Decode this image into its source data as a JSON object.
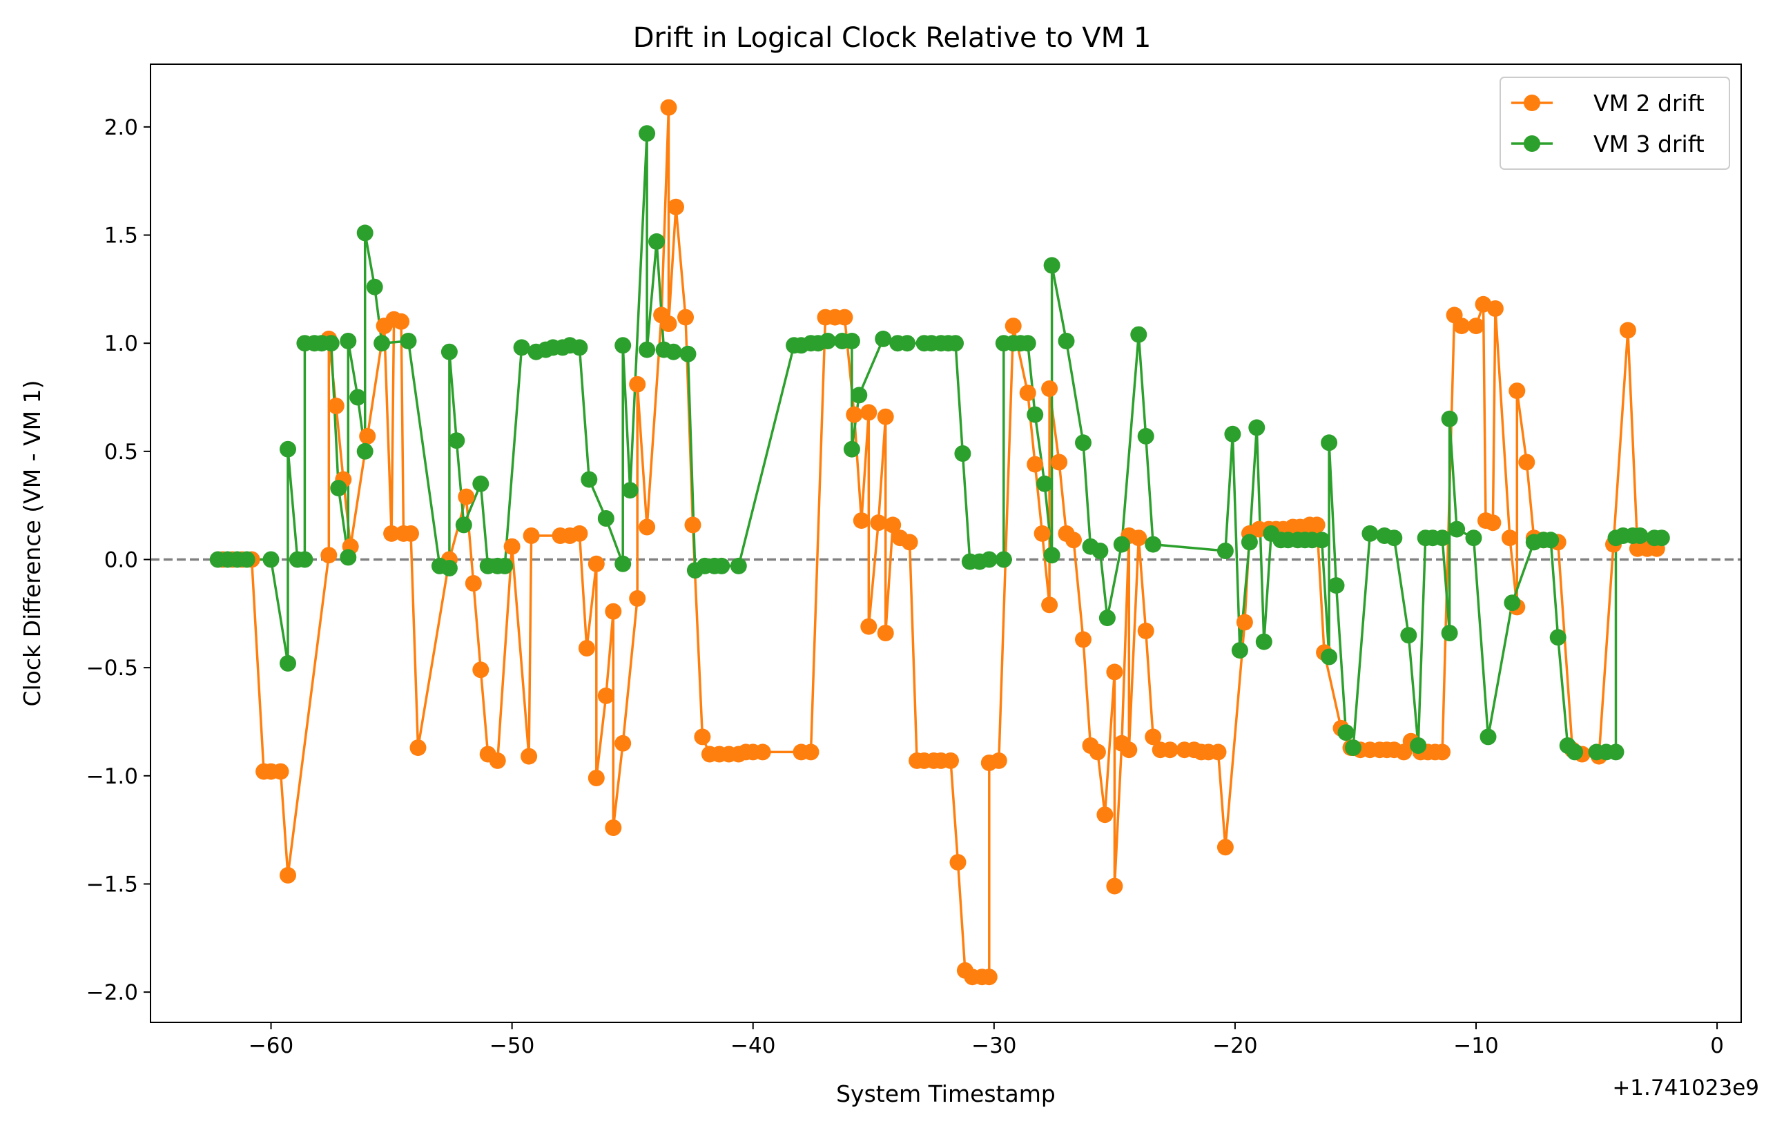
{
  "chart_data": {
    "type": "line",
    "title": "Drift in Logical Clock Relative to VM 1",
    "xlabel": "System Timestamp",
    "ylabel": "Clock Difference (VM - VM 1)",
    "x_offset_label": "+1.741023e9",
    "xlim": [
      -65,
      1
    ],
    "ylim": [
      -2.14,
      2.29
    ],
    "x_ticks": [
      -60,
      -50,
      -40,
      -30,
      -20,
      -10,
      0
    ],
    "x_tick_labels": [
      "−60",
      "−50",
      "−40",
      "−30",
      "−20",
      "−10",
      "0"
    ],
    "y_ticks": [
      2.0,
      1.5,
      1.0,
      0.5,
      0.0,
      -0.5,
      -1.0,
      -1.5,
      -2.0
    ],
    "y_tick_labels": [
      "2.0",
      "1.5",
      "1.0",
      "0.5",
      "0.0",
      "−0.5",
      "−1.0",
      "−1.5",
      "−2.0"
    ],
    "grid": false,
    "legend_position": "top-right",
    "reference_line": {
      "y": 0,
      "style": "dashed",
      "color": "#808080"
    },
    "series": [
      {
        "name": "VM 2 drift",
        "color": "#ff7f0e",
        "points": [
          [
            -62.0,
            0.0
          ],
          [
            -61.6,
            0.0
          ],
          [
            -61.2,
            0.0
          ],
          [
            -60.8,
            0.0
          ],
          [
            -60.3,
            -0.98
          ],
          [
            -60.0,
            -0.98
          ],
          [
            -59.6,
            -0.98
          ],
          [
            -59.3,
            -1.46
          ],
          [
            -57.6,
            0.02
          ],
          [
            -57.6,
            1.02
          ],
          [
            -57.3,
            0.71
          ],
          [
            -57.0,
            0.37
          ],
          [
            -56.7,
            0.06
          ],
          [
            -56.0,
            0.57
          ],
          [
            -55.3,
            1.08
          ],
          [
            -55.0,
            0.12
          ],
          [
            -54.9,
            1.11
          ],
          [
            -54.6,
            1.1
          ],
          [
            -54.5,
            0.12
          ],
          [
            -54.2,
            0.12
          ],
          [
            -53.9,
            -0.87
          ],
          [
            -52.6,
            0.0
          ],
          [
            -51.9,
            0.29
          ],
          [
            -51.6,
            -0.11
          ],
          [
            -51.3,
            -0.51
          ],
          [
            -51.0,
            -0.9
          ],
          [
            -50.6,
            -0.93
          ],
          [
            -50.0,
            0.06
          ],
          [
            -49.3,
            -0.91
          ],
          [
            -49.2,
            0.11
          ],
          [
            -48.0,
            0.11
          ],
          [
            -47.6,
            0.11
          ],
          [
            -47.2,
            0.12
          ],
          [
            -46.9,
            -0.41
          ],
          [
            -46.5,
            -0.02
          ],
          [
            -46.5,
            -1.01
          ],
          [
            -46.1,
            -0.63
          ],
          [
            -45.8,
            -0.24
          ],
          [
            -45.8,
            -1.24
          ],
          [
            -45.4,
            -0.85
          ],
          [
            -44.8,
            -0.18
          ],
          [
            -44.8,
            0.81
          ],
          [
            -44.4,
            0.15
          ],
          [
            -43.8,
            1.13
          ],
          [
            -43.5,
            2.09
          ],
          [
            -43.5,
            1.09
          ],
          [
            -43.2,
            1.63
          ],
          [
            -42.8,
            1.12
          ],
          [
            -42.5,
            0.16
          ],
          [
            -42.1,
            -0.82
          ],
          [
            -41.8,
            -0.9
          ],
          [
            -41.4,
            -0.9
          ],
          [
            -41.0,
            -0.9
          ],
          [
            -40.6,
            -0.9
          ],
          [
            -40.3,
            -0.89
          ],
          [
            -40.0,
            -0.89
          ],
          [
            -39.6,
            -0.89
          ],
          [
            -38.0,
            -0.89
          ],
          [
            -37.6,
            -0.89
          ],
          [
            -37.0,
            1.12
          ],
          [
            -36.6,
            1.12
          ],
          [
            -36.2,
            1.12
          ],
          [
            -35.8,
            0.67
          ],
          [
            -35.5,
            0.18
          ],
          [
            -35.2,
            0.68
          ],
          [
            -35.2,
            -0.31
          ],
          [
            -34.8,
            0.17
          ],
          [
            -34.5,
            0.66
          ],
          [
            -34.5,
            -0.34
          ],
          [
            -34.2,
            0.16
          ],
          [
            -33.9,
            0.1
          ],
          [
            -33.5,
            0.08
          ],
          [
            -33.2,
            -0.93
          ],
          [
            -32.9,
            -0.93
          ],
          [
            -32.5,
            -0.93
          ],
          [
            -32.2,
            -0.93
          ],
          [
            -31.8,
            -0.93
          ],
          [
            -31.5,
            -1.4
          ],
          [
            -31.2,
            -1.9
          ],
          [
            -30.9,
            -1.93
          ],
          [
            -30.5,
            -1.93
          ],
          [
            -30.2,
            -1.93
          ],
          [
            -30.2,
            -0.94
          ],
          [
            -29.8,
            -0.93
          ],
          [
            -29.2,
            1.08
          ],
          [
            -28.6,
            0.77
          ],
          [
            -28.3,
            0.44
          ],
          [
            -28.0,
            0.12
          ],
          [
            -27.7,
            -0.21
          ],
          [
            -27.7,
            0.79
          ],
          [
            -27.3,
            0.45
          ],
          [
            -27.0,
            0.12
          ],
          [
            -26.7,
            0.09
          ],
          [
            -26.3,
            -0.37
          ],
          [
            -26.0,
            -0.86
          ],
          [
            -25.7,
            -0.89
          ],
          [
            -25.4,
            -1.18
          ],
          [
            -25.0,
            -0.52
          ],
          [
            -25.0,
            -1.51
          ],
          [
            -24.7,
            -0.85
          ],
          [
            -24.4,
            0.11
          ],
          [
            -24.4,
            -0.88
          ],
          [
            -24.0,
            0.1
          ],
          [
            -23.7,
            -0.33
          ],
          [
            -23.4,
            -0.82
          ],
          [
            -23.1,
            -0.88
          ],
          [
            -22.7,
            -0.88
          ],
          [
            -22.1,
            -0.88
          ],
          [
            -21.7,
            -0.88
          ],
          [
            -21.4,
            -0.89
          ],
          [
            -21.1,
            -0.89
          ],
          [
            -20.7,
            -0.89
          ],
          [
            -20.4,
            -1.33
          ],
          [
            -19.6,
            -0.29
          ],
          [
            -19.4,
            0.12
          ],
          [
            -19.0,
            0.14
          ],
          [
            -18.6,
            0.14
          ],
          [
            -18.3,
            0.14
          ],
          [
            -18.0,
            0.14
          ],
          [
            -17.6,
            0.15
          ],
          [
            -17.3,
            0.15
          ],
          [
            -16.9,
            0.16
          ],
          [
            -16.6,
            0.16
          ],
          [
            -16.3,
            -0.43
          ],
          [
            -15.6,
            -0.78
          ],
          [
            -15.2,
            -0.87
          ],
          [
            -14.8,
            -0.88
          ],
          [
            -14.4,
            -0.88
          ],
          [
            -14.0,
            -0.88
          ],
          [
            -13.7,
            -0.88
          ],
          [
            -13.4,
            -0.88
          ],
          [
            -13.0,
            -0.89
          ],
          [
            -12.7,
            -0.84
          ],
          [
            -12.3,
            -0.89
          ],
          [
            -12.0,
            -0.89
          ],
          [
            -11.7,
            -0.89
          ],
          [
            -11.4,
            -0.89
          ],
          [
            -10.9,
            1.13
          ],
          [
            -10.6,
            1.08
          ],
          [
            -10.0,
            1.08
          ],
          [
            -9.7,
            1.18
          ],
          [
            -9.6,
            0.18
          ],
          [
            -9.3,
            0.17
          ],
          [
            -9.2,
            1.16
          ],
          [
            -8.6,
            0.1
          ],
          [
            -8.3,
            -0.22
          ],
          [
            -8.3,
            0.78
          ],
          [
            -7.9,
            0.45
          ],
          [
            -7.6,
            0.1
          ],
          [
            -7.2,
            0.09
          ],
          [
            -6.6,
            0.08
          ],
          [
            -6.0,
            -0.88
          ],
          [
            -5.6,
            -0.9
          ],
          [
            -4.9,
            -0.91
          ],
          [
            -4.3,
            0.07
          ],
          [
            -3.7,
            1.06
          ],
          [
            -3.3,
            0.05
          ],
          [
            -2.9,
            0.05
          ],
          [
            -2.5,
            0.05
          ]
        ]
      },
      {
        "name": "VM 3 drift",
        "color": "#2ca02c",
        "points": [
          [
            -62.2,
            0.0
          ],
          [
            -61.8,
            0.0
          ],
          [
            -61.4,
            0.0
          ],
          [
            -61.0,
            0.0
          ],
          [
            -60.0,
            0.0
          ],
          [
            -59.3,
            -0.48
          ],
          [
            -59.3,
            0.51
          ],
          [
            -58.9,
            0.0
          ],
          [
            -58.6,
            0.0
          ],
          [
            -58.6,
            1.0
          ],
          [
            -58.2,
            1.0
          ],
          [
            -57.9,
            1.0
          ],
          [
            -57.5,
            1.0
          ],
          [
            -57.2,
            0.33
          ],
          [
            -56.8,
            0.01
          ],
          [
            -56.8,
            1.01
          ],
          [
            -56.4,
            0.75
          ],
          [
            -56.1,
            0.5
          ],
          [
            -56.1,
            1.51
          ],
          [
            -55.7,
            1.26
          ],
          [
            -55.4,
            1.0
          ],
          [
            -54.3,
            1.01
          ],
          [
            -53.0,
            -0.03
          ],
          [
            -52.6,
            -0.04
          ],
          [
            -52.6,
            0.96
          ],
          [
            -52.3,
            0.55
          ],
          [
            -52.0,
            0.16
          ],
          [
            -51.3,
            0.35
          ],
          [
            -51.0,
            -0.03
          ],
          [
            -50.6,
            -0.03
          ],
          [
            -50.3,
            -0.03
          ],
          [
            -49.6,
            0.98
          ],
          [
            -49.0,
            0.96
          ],
          [
            -48.6,
            0.97
          ],
          [
            -48.3,
            0.98
          ],
          [
            -47.9,
            0.98
          ],
          [
            -47.6,
            0.99
          ],
          [
            -47.2,
            0.98
          ],
          [
            -46.8,
            0.37
          ],
          [
            -46.1,
            0.19
          ],
          [
            -45.4,
            -0.02
          ],
          [
            -45.4,
            0.99
          ],
          [
            -45.1,
            0.32
          ],
          [
            -44.4,
            1.97
          ],
          [
            -44.4,
            0.97
          ],
          [
            -44.0,
            1.47
          ],
          [
            -43.7,
            0.97
          ],
          [
            -43.3,
            0.96
          ],
          [
            -42.7,
            0.95
          ],
          [
            -42.4,
            -0.05
          ],
          [
            -42.0,
            -0.03
          ],
          [
            -41.6,
            -0.03
          ],
          [
            -41.3,
            -0.03
          ],
          [
            -40.6,
            -0.03
          ],
          [
            -38.3,
            0.99
          ],
          [
            -38.0,
            0.99
          ],
          [
            -37.6,
            1.0
          ],
          [
            -37.3,
            1.0
          ],
          [
            -36.9,
            1.01
          ],
          [
            -36.3,
            1.01
          ],
          [
            -35.9,
            1.01
          ],
          [
            -35.9,
            0.51
          ],
          [
            -35.6,
            0.76
          ],
          [
            -34.6,
            1.02
          ],
          [
            -34.0,
            1.0
          ],
          [
            -33.6,
            1.0
          ],
          [
            -32.9,
            1.0
          ],
          [
            -32.6,
            1.0
          ],
          [
            -32.2,
            1.0
          ],
          [
            -31.9,
            1.0
          ],
          [
            -31.6,
            1.0
          ],
          [
            -31.3,
            0.49
          ],
          [
            -31.0,
            -0.01
          ],
          [
            -30.6,
            -0.01
          ],
          [
            -30.2,
            0.0
          ],
          [
            -29.6,
            0.0
          ],
          [
            -29.6,
            1.0
          ],
          [
            -29.2,
            1.0
          ],
          [
            -28.9,
            1.0
          ],
          [
            -28.6,
            1.0
          ],
          [
            -28.3,
            0.67
          ],
          [
            -27.9,
            0.35
          ],
          [
            -27.6,
            0.02
          ],
          [
            -27.6,
            1.36
          ],
          [
            -27.0,
            1.01
          ],
          [
            -26.3,
            0.54
          ],
          [
            -26.0,
            0.06
          ],
          [
            -25.6,
            0.04
          ],
          [
            -25.3,
            -0.27
          ],
          [
            -24.7,
            0.07
          ],
          [
            -24.0,
            1.04
          ],
          [
            -23.7,
            0.57
          ],
          [
            -23.4,
            0.07
          ],
          [
            -20.4,
            0.04
          ],
          [
            -20.1,
            0.58
          ],
          [
            -19.8,
            -0.42
          ],
          [
            -19.4,
            0.08
          ],
          [
            -19.1,
            0.61
          ],
          [
            -18.8,
            -0.38
          ],
          [
            -18.5,
            0.12
          ],
          [
            -18.1,
            0.09
          ],
          [
            -17.8,
            0.09
          ],
          [
            -17.4,
            0.09
          ],
          [
            -17.1,
            0.09
          ],
          [
            -16.8,
            0.09
          ],
          [
            -16.4,
            0.09
          ],
          [
            -16.1,
            -0.45
          ],
          [
            -16.1,
            0.54
          ],
          [
            -15.8,
            -0.12
          ],
          [
            -15.4,
            -0.8
          ],
          [
            -15.1,
            -0.87
          ],
          [
            -14.4,
            0.12
          ],
          [
            -13.8,
            0.11
          ],
          [
            -13.4,
            0.1
          ],
          [
            -12.8,
            -0.35
          ],
          [
            -12.4,
            -0.86
          ],
          [
            -12.1,
            0.1
          ],
          [
            -11.8,
            0.1
          ],
          [
            -11.4,
            0.1
          ],
          [
            -11.1,
            -0.34
          ],
          [
            -11.1,
            0.65
          ],
          [
            -10.8,
            0.14
          ],
          [
            -10.1,
            0.1
          ],
          [
            -9.5,
            -0.82
          ],
          [
            -8.5,
            -0.2
          ],
          [
            -7.6,
            0.08
          ],
          [
            -7.2,
            0.09
          ],
          [
            -6.9,
            0.09
          ],
          [
            -6.6,
            -0.36
          ],
          [
            -6.2,
            -0.86
          ],
          [
            -5.9,
            -0.89
          ],
          [
            -5.0,
            -0.89
          ],
          [
            -4.6,
            -0.89
          ],
          [
            -4.2,
            -0.89
          ],
          [
            -4.2,
            0.1
          ],
          [
            -3.9,
            0.11
          ],
          [
            -3.5,
            0.11
          ],
          [
            -3.2,
            0.11
          ],
          [
            -2.6,
            0.1
          ],
          [
            -2.3,
            0.1
          ]
        ]
      }
    ]
  }
}
